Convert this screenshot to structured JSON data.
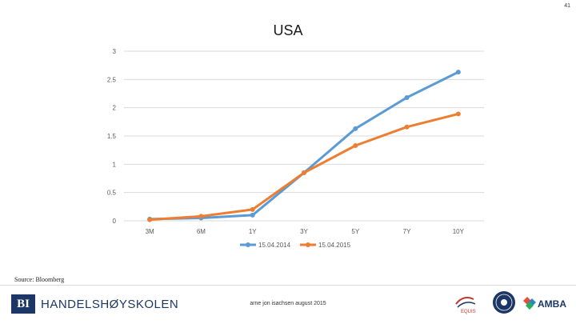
{
  "page_number": "41",
  "footer": {
    "source": "Source: Bloomberg",
    "institution_code": "BI",
    "institution_name": "HANDELSHØYSKOLEN",
    "author_text": "arne jon isachsen august 2015",
    "badges": {
      "equis": "EQUIS",
      "amba": "AMBA"
    }
  },
  "colors": {
    "series_2014": "#5b9bd5",
    "series_2015": "#ed7d31",
    "grid": "#d9d9d9",
    "brand": "#1c3666"
  },
  "chart_data": {
    "type": "line",
    "title": "USA",
    "categories": [
      "3M",
      "6M",
      "1Y",
      "3Y",
      "5Y",
      "7Y",
      "10Y"
    ],
    "y_ticks": [
      "0",
      "0.5",
      "1",
      "1.5",
      "2",
      "2.5",
      "3"
    ],
    "ylim": [
      0,
      3
    ],
    "series": [
      {
        "name": "15.04.2014",
        "color": "#5b9bd5",
        "values": [
          0.03,
          0.05,
          0.1,
          0.85,
          1.63,
          2.18,
          2.63
        ]
      },
      {
        "name": "15.04.2015",
        "color": "#ed7d31",
        "values": [
          0.02,
          0.08,
          0.2,
          0.85,
          1.33,
          1.66,
          1.89
        ]
      }
    ],
    "legend_position": "bottom"
  }
}
